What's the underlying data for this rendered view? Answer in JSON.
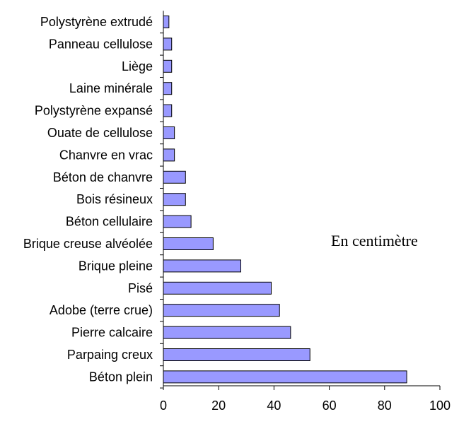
{
  "chart_data": {
    "type": "bar",
    "orientation": "horizontal",
    "categories": [
      "Polystyrène extrudé",
      "Panneau cellulose",
      "Liège",
      "Laine minérale",
      "Polystyrène expansé",
      "Ouate de cellulose",
      "Chanvre en vrac",
      "Béton de chanvre",
      "Bois résineux",
      "Béton cellulaire",
      "Brique creuse alvéolée",
      "Brique pleine",
      "Pisé",
      "Adobe (terre crue)",
      "Pierre calcaire",
      "Parpaing creux",
      "Béton plein"
    ],
    "values": [
      2,
      3,
      3,
      3,
      3,
      4,
      4,
      8,
      8,
      10,
      18,
      28,
      39,
      42,
      46,
      53,
      88
    ],
    "xlim": [
      0,
      100
    ],
    "xticks": [
      "0",
      "20",
      "40",
      "60",
      "80",
      "100"
    ],
    "annotation": "En centimètre",
    "title": "",
    "xlabel": "",
    "ylabel": "",
    "grid": false,
    "bar_color": "#9999ff",
    "bar_edge_color": "#000000"
  }
}
